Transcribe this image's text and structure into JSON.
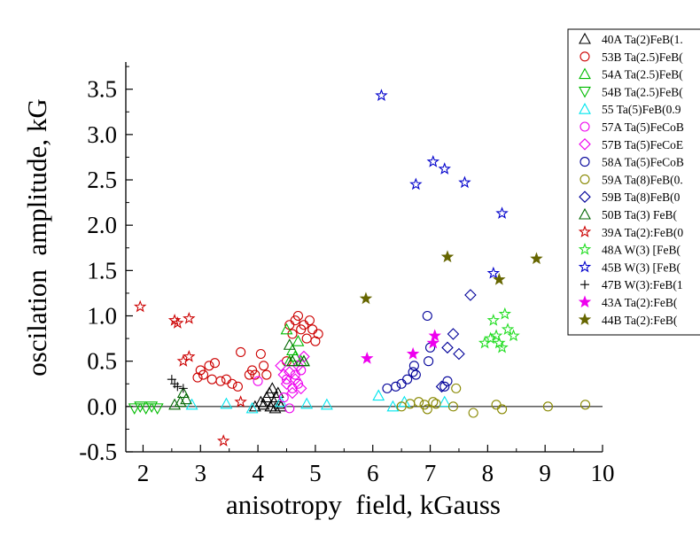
{
  "chart_data": {
    "type": "scatter",
    "xlabel": "anisotropy  field, kGauss",
    "ylabel": "oscilation  amplitude, kG",
    "xlim": [
      1.7,
      10
    ],
    "ylim": [
      -0.5,
      3.8
    ],
    "x_ticks": [
      2,
      3,
      4,
      5,
      6,
      7,
      8,
      9,
      10
    ],
    "x_tick_labels": [
      "2",
      "3",
      "4",
      "5",
      "6",
      "7",
      "8",
      "9",
      "10"
    ],
    "y_ticks": [
      -0.5,
      0.0,
      0.5,
      1.0,
      1.5,
      2.0,
      2.5,
      3.0,
      3.5
    ],
    "y_tick_labels": [
      "-0.5",
      "0.0",
      "0.5",
      "1.0",
      "1.5",
      "2.0",
      "2.5",
      "3.0",
      "3.5"
    ],
    "zero_line": true,
    "grid": false,
    "legend_position": "top-right",
    "series": [
      {
        "name": "40A Ta(2)FeB(1.",
        "marker": "triangle",
        "color": "#000000",
        "filled": false,
        "points": [
          [
            3.95,
            0.0
          ],
          [
            4.05,
            0.05
          ],
          [
            4.1,
            0.02
          ],
          [
            4.15,
            0.1
          ],
          [
            4.2,
            0.15
          ],
          [
            4.22,
            0.0
          ],
          [
            4.25,
            0.2
          ],
          [
            4.28,
            0.05
          ],
          [
            4.3,
            -0.02
          ],
          [
            4.32,
            0.1
          ],
          [
            4.35,
            0.15
          ],
          [
            4.38,
            0.03
          ],
          [
            4.4,
            0.0
          ]
        ]
      },
      {
        "name": "53B Ta(2.5)FeB(",
        "marker": "circle",
        "color": "#cc0000",
        "filled": false,
        "points": [
          [
            2.95,
            0.32
          ],
          [
            3.0,
            0.4
          ],
          [
            3.05,
            0.35
          ],
          [
            3.15,
            0.45
          ],
          [
            3.2,
            0.3
          ],
          [
            3.25,
            0.48
          ],
          [
            3.35,
            0.28
          ],
          [
            3.45,
            0.3
          ],
          [
            3.55,
            0.25
          ],
          [
            3.65,
            0.22
          ],
          [
            3.7,
            0.6
          ],
          [
            3.85,
            0.35
          ],
          [
            3.9,
            0.4
          ],
          [
            3.95,
            0.35
          ],
          [
            4.05,
            0.58
          ],
          [
            4.1,
            0.45
          ],
          [
            4.15,
            0.35
          ],
          [
            4.5,
            0.5
          ],
          [
            4.55,
            0.9
          ],
          [
            4.6,
            0.8
          ],
          [
            4.65,
            0.95
          ],
          [
            4.7,
            1.0
          ],
          [
            4.75,
            0.85
          ],
          [
            4.8,
            0.9
          ],
          [
            4.85,
            0.75
          ],
          [
            4.9,
            0.95
          ],
          [
            4.95,
            0.85
          ],
          [
            5.0,
            0.72
          ],
          [
            5.05,
            0.8
          ]
        ]
      },
      {
        "name": "54A Ta(2.5)FeB(",
        "marker": "triangle",
        "color": "#00bb00",
        "filled": false,
        "points": [
          [
            4.5,
            0.85
          ],
          [
            4.55,
            0.5
          ],
          [
            4.6,
            0.62
          ],
          [
            4.65,
            0.55
          ],
          [
            4.7,
            0.72
          ],
          [
            4.75,
            0.5
          ],
          [
            4.8,
            0.5
          ]
        ]
      },
      {
        "name": "54B Ta(2.5)FeB(",
        "marker": "triangle-down",
        "color": "#00bb00",
        "filled": false,
        "points": [
          [
            1.85,
            -0.02
          ],
          [
            1.95,
            0.0
          ],
          [
            2.05,
            -0.02
          ],
          [
            2.15,
            0.0
          ],
          [
            2.25,
            -0.02
          ]
        ]
      },
      {
        "name": "55 Ta(5)FeB(0.9",
        "marker": "triangle",
        "color": "#00e5ee",
        "filled": false,
        "points": [
          [
            2.85,
            0.02
          ],
          [
            3.45,
            0.03
          ],
          [
            3.9,
            -0.02
          ],
          [
            4.4,
            0.05
          ],
          [
            4.85,
            0.03
          ],
          [
            5.2,
            0.02
          ],
          [
            6.1,
            0.12
          ],
          [
            6.35,
            0.0
          ],
          [
            6.55,
            0.05
          ],
          [
            7.25,
            0.05
          ]
        ]
      },
      {
        "name": "57A Ta(5)FeCoB",
        "marker": "circle",
        "color": "#ee00ee",
        "filled": false,
        "points": [
          [
            4.0,
            0.28
          ],
          [
            4.45,
            0.1
          ],
          [
            4.5,
            0.3
          ],
          [
            4.55,
            -0.02
          ],
          [
            4.6,
            0.2
          ],
          [
            4.65,
            0.35
          ],
          [
            4.7,
            0.25
          ],
          [
            4.75,
            0.4
          ]
        ]
      },
      {
        "name": "57B Ta(5)FeCoE",
        "marker": "diamond",
        "color": "#ee00ee",
        "filled": false,
        "points": [
          [
            4.4,
            0.45
          ],
          [
            4.45,
            0.35
          ],
          [
            4.5,
            0.25
          ],
          [
            4.55,
            0.38
          ],
          [
            4.6,
            0.15
          ],
          [
            4.65,
            0.3
          ],
          [
            4.7,
            0.45
          ],
          [
            4.75,
            0.2
          ],
          [
            4.8,
            0.55
          ]
        ]
      },
      {
        "name": "58A Ta(5)FeCoB",
        "marker": "circle",
        "color": "#000099",
        "filled": false,
        "points": [
          [
            6.25,
            0.2
          ],
          [
            6.4,
            0.22
          ],
          [
            6.5,
            0.25
          ],
          [
            6.6,
            0.3
          ],
          [
            6.7,
            0.38
          ],
          [
            6.72,
            0.45
          ],
          [
            6.75,
            0.35
          ],
          [
            6.95,
            1.0
          ],
          [
            6.97,
            0.5
          ],
          [
            7.0,
            0.65
          ],
          [
            7.25,
            0.22
          ],
          [
            7.3,
            0.28
          ]
        ]
      },
      {
        "name": "59A Ta(8)FeB(0.",
        "marker": "circle",
        "color": "#888800",
        "filled": false,
        "points": [
          [
            6.5,
            0.0
          ],
          [
            6.65,
            0.03
          ],
          [
            6.8,
            0.05
          ],
          [
            6.9,
            0.02
          ],
          [
            6.95,
            -0.03
          ],
          [
            7.05,
            0.05
          ],
          [
            7.1,
            0.03
          ],
          [
            7.4,
            0.0
          ],
          [
            7.45,
            0.2
          ],
          [
            7.75,
            -0.07
          ],
          [
            8.15,
            0.02
          ],
          [
            8.25,
            -0.03
          ],
          [
            9.05,
            0.0
          ],
          [
            9.7,
            0.02
          ]
        ]
      },
      {
        "name": "59B Ta(8)FeB(0",
        "marker": "diamond",
        "color": "#000099",
        "filled": false,
        "points": [
          [
            7.2,
            0.22
          ],
          [
            7.3,
            0.65
          ],
          [
            7.4,
            0.8
          ],
          [
            7.5,
            0.58
          ],
          [
            7.7,
            1.23
          ]
        ]
      },
      {
        "name": "50B  Ta(3) FeB(",
        "marker": "triangle",
        "color": "#006600",
        "filled": false,
        "points": [
          [
            2.55,
            0.02
          ],
          [
            2.65,
            0.05
          ],
          [
            2.7,
            0.15
          ],
          [
            2.75,
            0.08
          ],
          [
            4.55,
            0.68
          ],
          [
            4.6,
            0.5
          ],
          [
            4.8,
            0.5
          ]
        ]
      },
      {
        "name": "39A Ta(2):FeB(0",
        "marker": "star",
        "color": "#cc0000",
        "filled": false,
        "points": [
          [
            1.95,
            1.1
          ],
          [
            2.55,
            0.95
          ],
          [
            2.6,
            0.92
          ],
          [
            2.8,
            0.97
          ],
          [
            2.7,
            0.5
          ],
          [
            2.8,
            0.55
          ],
          [
            3.7,
            0.05
          ],
          [
            3.4,
            -0.38
          ]
        ]
      },
      {
        "name": "48A W(3) [FeB(",
        "marker": "star",
        "color": "#22dd22",
        "filled": false,
        "points": [
          [
            7.95,
            0.7
          ],
          [
            8.05,
            0.75
          ],
          [
            8.1,
            0.95
          ],
          [
            8.15,
            0.78
          ],
          [
            8.2,
            0.7
          ],
          [
            8.25,
            0.65
          ],
          [
            8.3,
            1.02
          ],
          [
            8.35,
            0.85
          ],
          [
            8.45,
            0.78
          ]
        ]
      },
      {
        "name": "45B W(3) [FeB(",
        "marker": "star",
        "color": "#0000cc",
        "filled": false,
        "points": [
          [
            6.15,
            3.43
          ],
          [
            6.75,
            2.45
          ],
          [
            7.05,
            2.7
          ],
          [
            7.25,
            2.62
          ],
          [
            7.6,
            2.47
          ],
          [
            8.1,
            1.47
          ],
          [
            8.25,
            2.13
          ]
        ]
      },
      {
        "name": "47B W(3):FeB(1",
        "marker": "plus",
        "color": "#000000",
        "filled": false,
        "points": [
          [
            2.5,
            0.3
          ],
          [
            2.55,
            0.25
          ],
          [
            2.6,
            0.22
          ],
          [
            2.7,
            0.2
          ]
        ]
      },
      {
        "name": "43A Ta(2):FeB(",
        "marker": "star",
        "color": "#ee00ee",
        "filled": true,
        "points": [
          [
            5.9,
            0.53
          ],
          [
            6.7,
            0.58
          ],
          [
            7.05,
            0.7
          ],
          [
            7.08,
            0.78
          ]
        ]
      },
      {
        "name": "44B Ta(2):FeB(",
        "marker": "star",
        "color": "#666600",
        "filled": true,
        "points": [
          [
            5.88,
            1.19
          ],
          [
            7.3,
            1.65
          ],
          [
            8.2,
            1.4
          ],
          [
            8.85,
            1.63
          ]
        ]
      }
    ]
  }
}
